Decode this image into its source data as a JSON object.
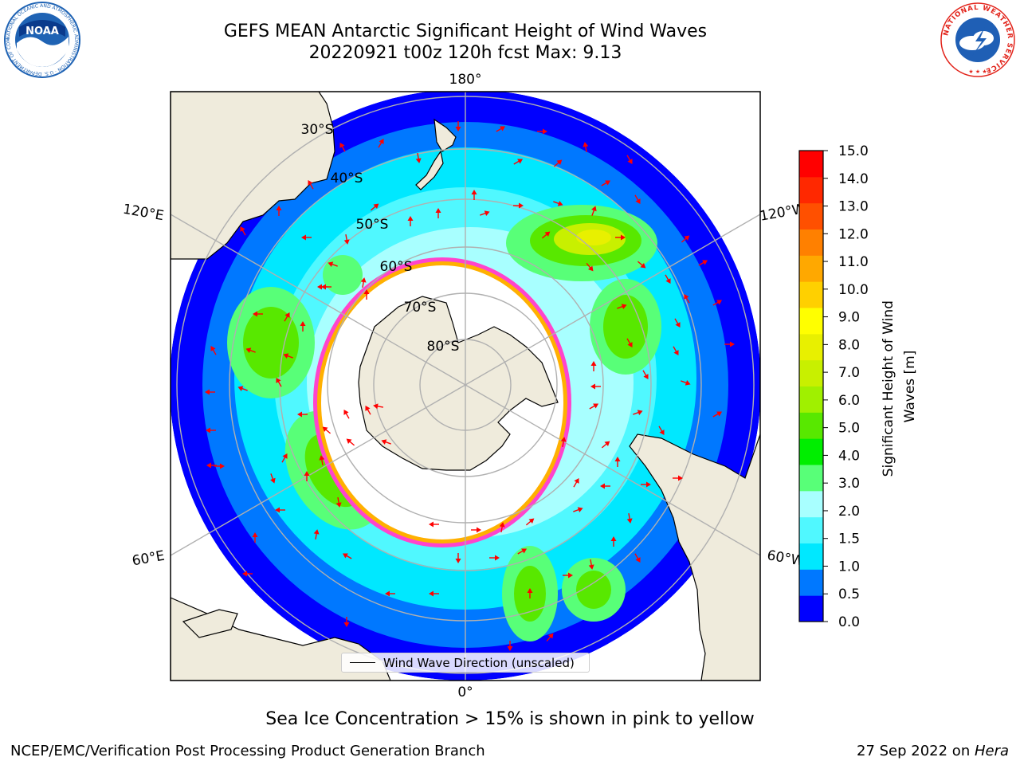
{
  "title": {
    "line1": "GEFS MEAN Antarctic Significant Height of Wind Waves",
    "line2": "20220921 t00z 120h fcst   Max: 9.13"
  },
  "logos": {
    "noaa": {
      "text": "NOAA",
      "ring_text": "NATIONAL OCEANIC AND ATMOSPHERIC ADMINISTRATION · U.S. DEPARTMENT OF COMMERCE",
      "colors": {
        "outer": "#1f63b4",
        "inner": "#0a3a8c",
        "white": "#ffffff"
      }
    },
    "nws": {
      "ring_text": "NATIONAL WEATHER SERVICE",
      "colors": {
        "ring": "#e2231a",
        "inner": "#1f5fb5",
        "cloud": "#ffffff"
      }
    }
  },
  "map": {
    "longitude_labels": {
      "top": "180°",
      "bottom": "0°",
      "left_upper": "120°E",
      "left_lower": "60°E",
      "right_upper": "120°W",
      "right_lower": "60°W"
    },
    "latitude_labels": [
      "30°S",
      "40°S",
      "50°S",
      "60°S",
      "70°S",
      "80°S"
    ],
    "legend_label": "Wind Wave Direction (unscaled)",
    "colors": {
      "land": "#efebdc",
      "coastline": "#000000",
      "gridline": "#b0b0b0",
      "arrow": "#ff0000",
      "sea_ice_edge": "#ff44cc",
      "sea_ice_inner": "#ffb000"
    }
  },
  "colorbar": {
    "label": "Significant Height of Wind Waves [m]",
    "ticks": [
      "0.0",
      "0.5",
      "1.0",
      "1.5",
      "2.0",
      "3.0",
      "4.0",
      "5.0",
      "6.0",
      "7.0",
      "8.0",
      "9.0",
      "10.0",
      "11.0",
      "12.0",
      "13.0",
      "14.0",
      "15.0"
    ],
    "colors": [
      "#0000ff",
      "#0078ff",
      "#00e8ff",
      "#50f8ff",
      "#a8ffff",
      "#58ff78",
      "#00ee00",
      "#58e800",
      "#a0f000",
      "#c8f000",
      "#e8f000",
      "#ffff00",
      "#ffd000",
      "#ffa800",
      "#ff8000",
      "#ff5000",
      "#ff2800",
      "#ff0000"
    ]
  },
  "note": "Sea Ice Concentration > 15% is shown in pink to yellow",
  "footer": {
    "left": "NCEP/EMC/Verification Post Processing Product Generation Branch",
    "right_prefix": "27 Sep 2022 on ",
    "right_host": "Hera"
  }
}
